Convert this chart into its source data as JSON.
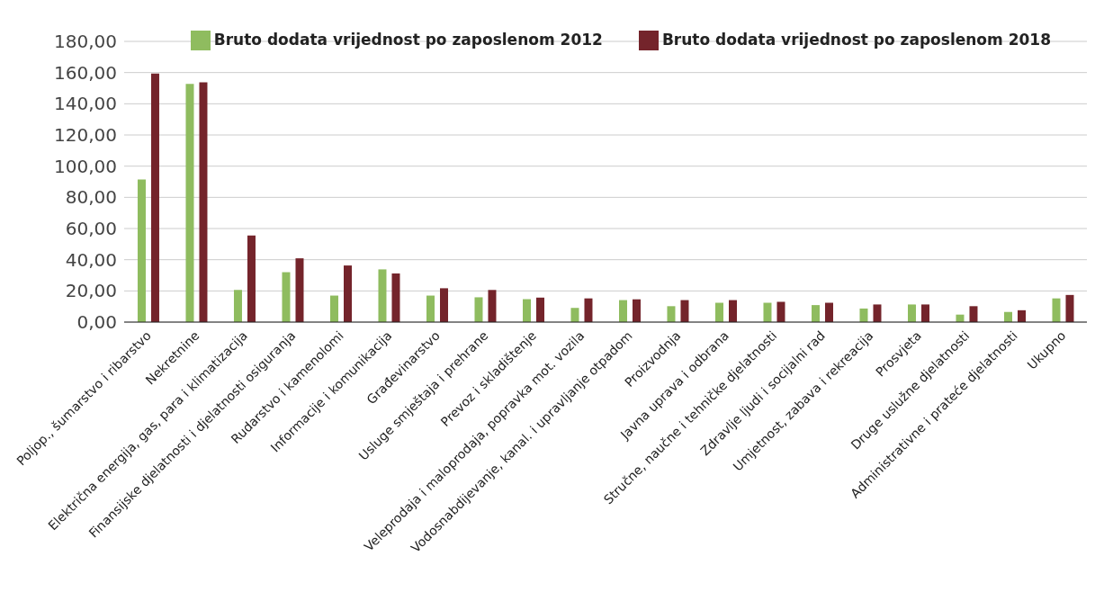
{
  "chart_data": {
    "type": "bar",
    "categories": [
      "Poljop., šumarstvo i ribarstvo",
      "Nekretnine",
      "Električna energija, gas, para i klimatizacija",
      "Finansijske djelatnosti i djelatnosti osiguranja",
      "Rudarstvo i kamenolomi",
      "Informacije i komunikacija",
      "Građevinarstvo",
      "Usluge smještaja i prehrane",
      "Prevoz i skladištenje",
      "Veleprodaja i maloprodaja, popravka mot. vozila",
      "Vodosnabdijevanje, kanal. i upravljanje otpadom",
      "Proizvodnja",
      "Javna uprava i odbrana",
      "Stručne, naučne i tehničke djelatnosti",
      "Zdravlje ljudi i socijalni rad",
      "Umjetnost, zabava i rekreacija",
      "Prosvjeta",
      "Druge uslužne djelatnosti",
      "Administrativne i prateće djelatnosti",
      "Ukupno"
    ],
    "series": [
      {
        "name": "Bruto dodata vrijednost po zaposlenom 2012",
        "color": "#8fbc5f",
        "values": [
          91.4,
          152.7,
          20.6,
          32,
          17,
          33.8,
          17,
          15.9,
          14.7,
          9.1,
          14.1,
          10.2,
          12.4,
          12.4,
          10.9,
          8.7,
          11.3,
          4.8,
          6.5,
          15.2
        ]
      },
      {
        "name": "Bruto dodata vrijednost po zaposlenom 2018",
        "color": "#74242b",
        "values": [
          159.4,
          153.8,
          55.5,
          40.9,
          36.3,
          31.2,
          21.7,
          20.6,
          15.7,
          15.2,
          14.6,
          14.1,
          14.1,
          13,
          12.4,
          11.3,
          11.3,
          10.2,
          7.6,
          17.4
        ]
      }
    ],
    "ylim": [
      0,
      180
    ],
    "yticks": [
      {
        "value": 0,
        "label": "0,00"
      },
      {
        "value": 20,
        "label": "20,00"
      },
      {
        "value": 40,
        "label": "40,00"
      },
      {
        "value": 60,
        "label": "60,00"
      },
      {
        "value": 80,
        "label": "80,00"
      },
      {
        "value": 100,
        "label": "100,00"
      },
      {
        "value": 120,
        "label": "120,00"
      },
      {
        "value": 140,
        "label": "140,00"
      },
      {
        "value": 160,
        "label": "160,00"
      },
      {
        "value": 180,
        "label": "180,00"
      }
    ],
    "grid": "y",
    "legend": "top right"
  }
}
